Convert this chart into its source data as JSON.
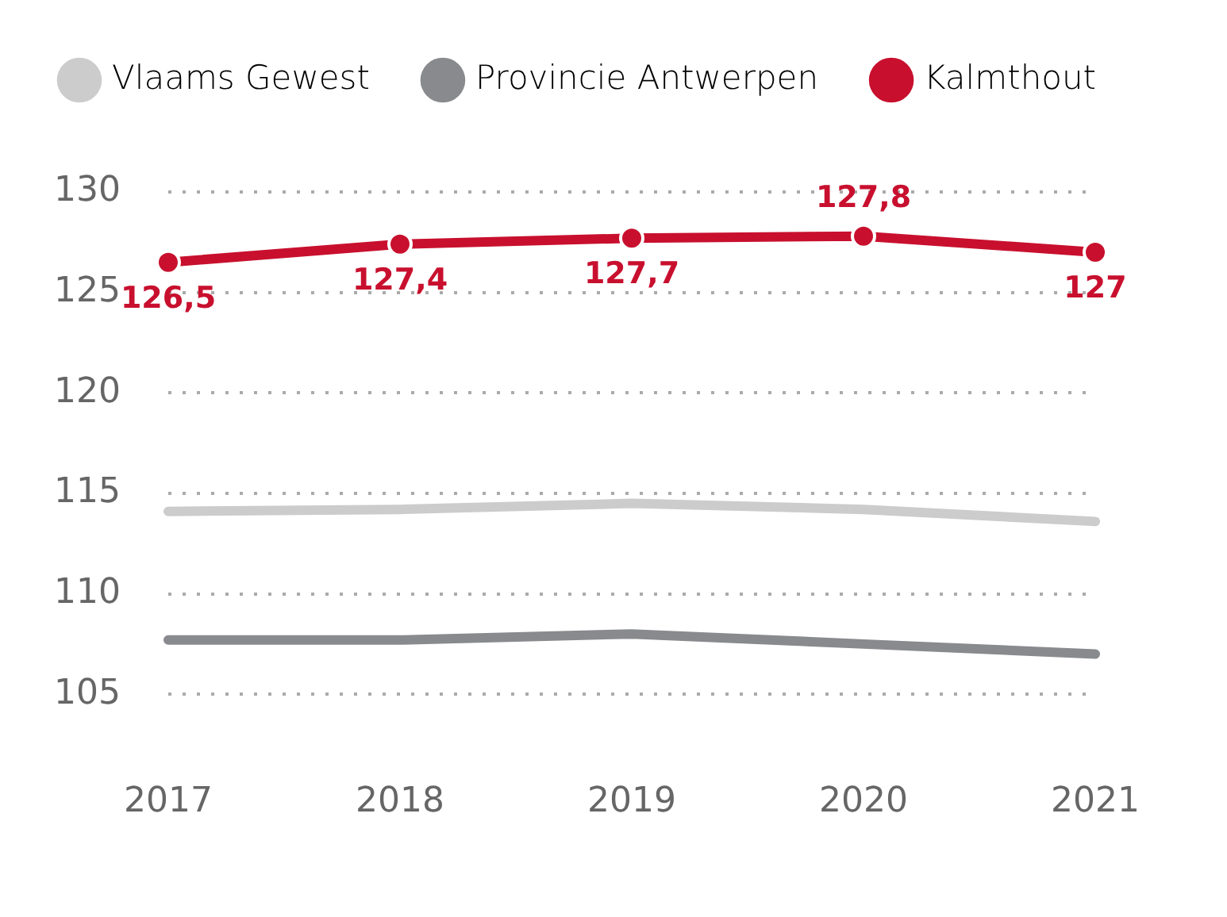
{
  "chart_data": {
    "type": "line",
    "categories": [
      "2017",
      "2018",
      "2019",
      "2020",
      "2021"
    ],
    "series": [
      {
        "name": "Vlaams Gewest",
        "color": "#cccccc",
        "marker": "none",
        "values": [
          114.1,
          114.2,
          114.5,
          114.2,
          113.6
        ]
      },
      {
        "name": "Provincie Antwerpen",
        "color": "#888a8d",
        "marker": "none",
        "values": [
          107.7,
          107.7,
          108.0,
          107.5,
          107.0
        ]
      },
      {
        "name": "Kalmthout",
        "color": "#c8102e",
        "marker": "circle",
        "values": [
          126.5,
          127.4,
          127.7,
          127.8,
          127
        ],
        "value_labels": [
          "126,5",
          "127,4",
          "127,7",
          "127,8",
          "127"
        ]
      }
    ],
    "ylim": [
      105,
      130
    ],
    "yticks": [
      105,
      110,
      115,
      120,
      125,
      130
    ],
    "grid": "y",
    "legend": "top left",
    "line_style": "solid"
  }
}
